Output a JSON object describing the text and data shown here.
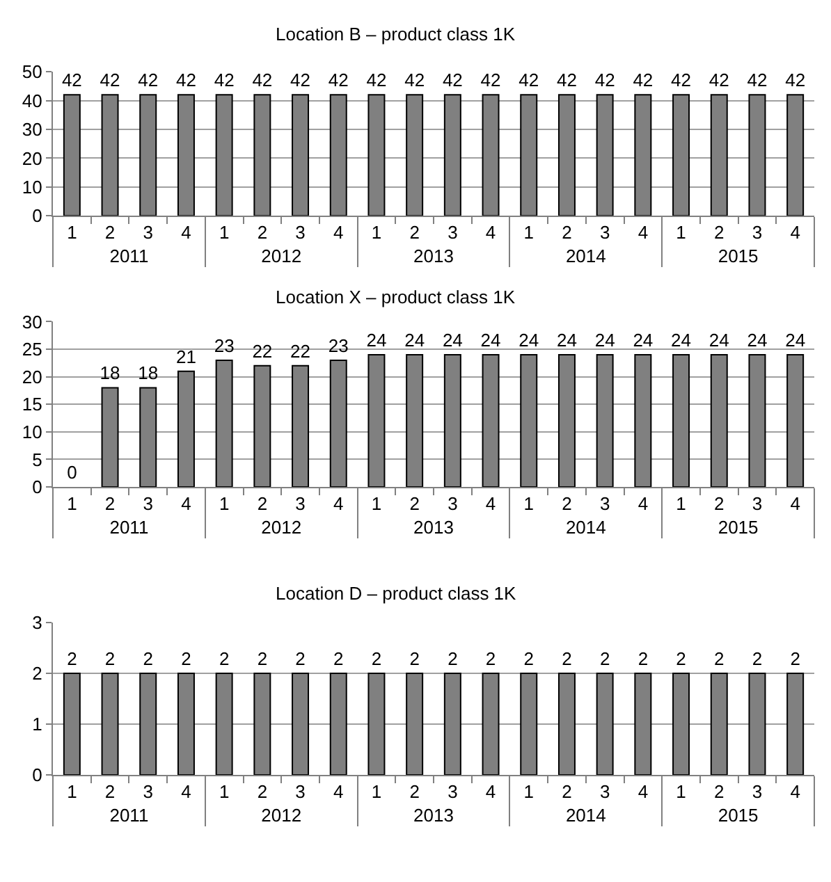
{
  "chart_data": [
    {
      "type": "bar",
      "title": "Location B – product class 1K",
      "categories": [
        "1",
        "2",
        "3",
        "4",
        "1",
        "2",
        "3",
        "4",
        "1",
        "2",
        "3",
        "4",
        "1",
        "2",
        "3",
        "4",
        "1",
        "2",
        "3",
        "4"
      ],
      "annotations": [
        "2011",
        "2012",
        "2013",
        "2014",
        "2015"
      ],
      "values": [
        42,
        42,
        42,
        42,
        42,
        42,
        42,
        42,
        42,
        42,
        42,
        42,
        42,
        42,
        42,
        42,
        42,
        42,
        42,
        42
      ],
      "color": "#808080",
      "ylim": [
        0,
        50
      ],
      "yticks": [
        0,
        10,
        20,
        30,
        40,
        50
      ],
      "grid": "y",
      "data_labels": true
    },
    {
      "type": "bar",
      "title": "Location X – product class 1K",
      "categories": [
        "1",
        "2",
        "3",
        "4",
        "1",
        "2",
        "3",
        "4",
        "1",
        "2",
        "3",
        "4",
        "1",
        "2",
        "3",
        "4",
        "1",
        "2",
        "3",
        "4"
      ],
      "annotations": [
        "2011",
        "2012",
        "2013",
        "2014",
        "2015"
      ],
      "values": [
        0,
        18,
        18,
        21,
        23,
        22,
        22,
        23,
        24,
        24,
        24,
        24,
        24,
        24,
        24,
        24,
        24,
        24,
        24,
        24
      ],
      "color": "#808080",
      "ylim": [
        0,
        30
      ],
      "yticks": [
        0,
        5,
        10,
        15,
        20,
        25,
        30
      ],
      "grid": "y",
      "data_labels": true
    },
    {
      "type": "bar",
      "title": "Location D – product class 1K",
      "categories": [
        "1",
        "2",
        "3",
        "4",
        "1",
        "2",
        "3",
        "4",
        "1",
        "2",
        "3",
        "4",
        "1",
        "2",
        "3",
        "4",
        "1",
        "2",
        "3",
        "4"
      ],
      "annotations": [
        "2011",
        "2012",
        "2013",
        "2014",
        "2015"
      ],
      "values": [
        2,
        2,
        2,
        2,
        2,
        2,
        2,
        2,
        2,
        2,
        2,
        2,
        2,
        2,
        2,
        2,
        2,
        2,
        2,
        2
      ],
      "color": "#808080",
      "ylim": [
        0,
        3
      ],
      "yticks": [
        0,
        1,
        2,
        3
      ],
      "grid": "y",
      "data_labels": true
    }
  ]
}
